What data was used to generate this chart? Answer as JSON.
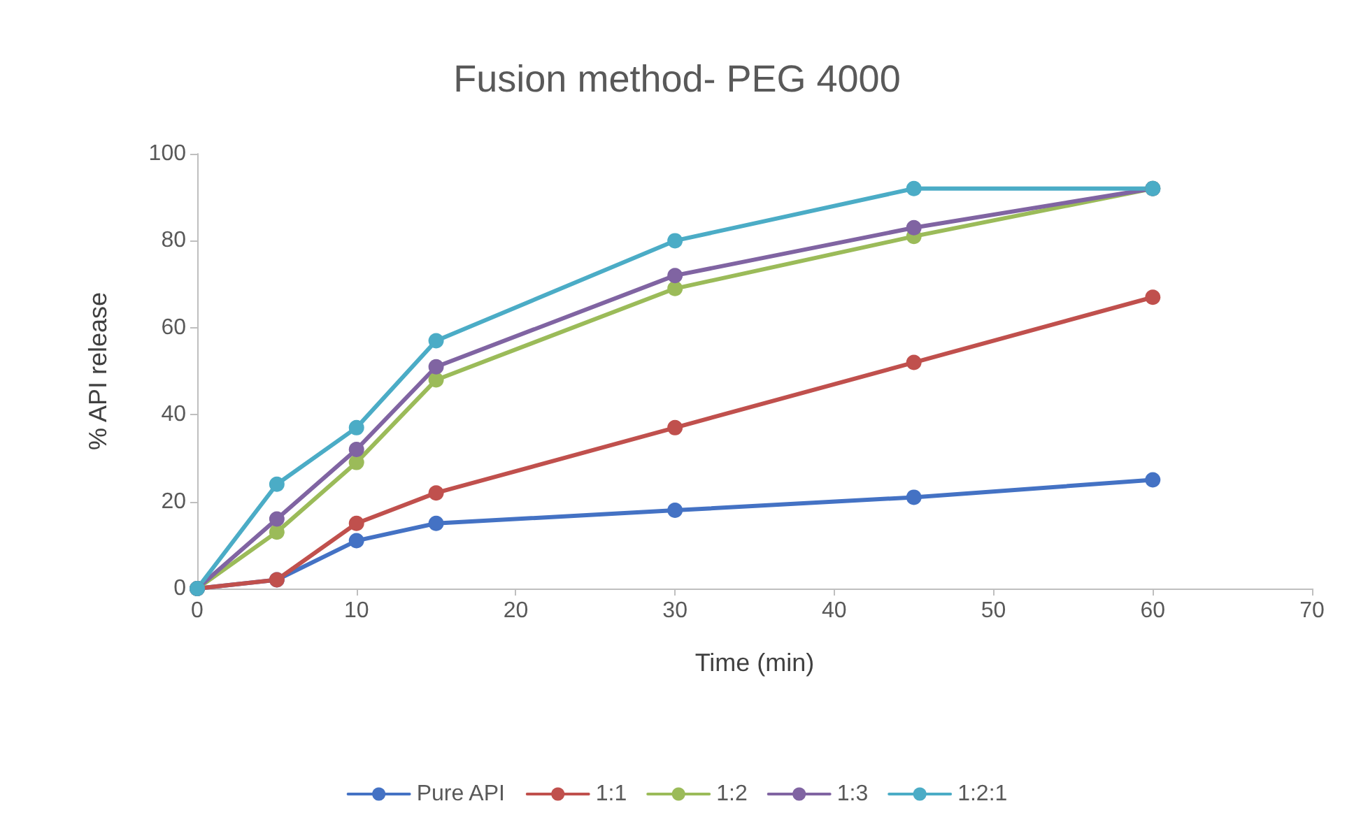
{
  "chart_data": {
    "type": "line",
    "title": "Fusion method- PEG 4000",
    "xlabel": "Time (min)",
    "ylabel": "% API release",
    "x": [
      0,
      5,
      10,
      15,
      30,
      45,
      60
    ],
    "series": [
      {
        "name": "Pure API",
        "color": "#4472c4",
        "values": [
          0,
          2,
          11,
          15,
          18,
          21,
          25
        ]
      },
      {
        "name": "1:1",
        "color": "#c0504d",
        "values": [
          0,
          2,
          15,
          22,
          37,
          52,
          67
        ]
      },
      {
        "name": "1:2",
        "color": "#9bbb59",
        "values": [
          0,
          13,
          29,
          48,
          69,
          81,
          92
        ]
      },
      {
        "name": "1:3",
        "color": "#8064a2",
        "values": [
          0,
          16,
          32,
          51,
          72,
          83,
          92
        ]
      },
      {
        "name": "1:2:1",
        "color": "#4bacc6",
        "values": [
          0,
          24,
          37,
          57,
          80,
          92,
          92
        ]
      }
    ],
    "xlim": [
      0,
      70
    ],
    "xticks": [
      0,
      10,
      20,
      30,
      40,
      50,
      60,
      70
    ],
    "ylim": [
      0,
      100
    ],
    "yticks": [
      0,
      20,
      40,
      60,
      80,
      100
    ],
    "grid": false,
    "legend": "bottom",
    "marker": "circle",
    "line_style": "solid"
  }
}
